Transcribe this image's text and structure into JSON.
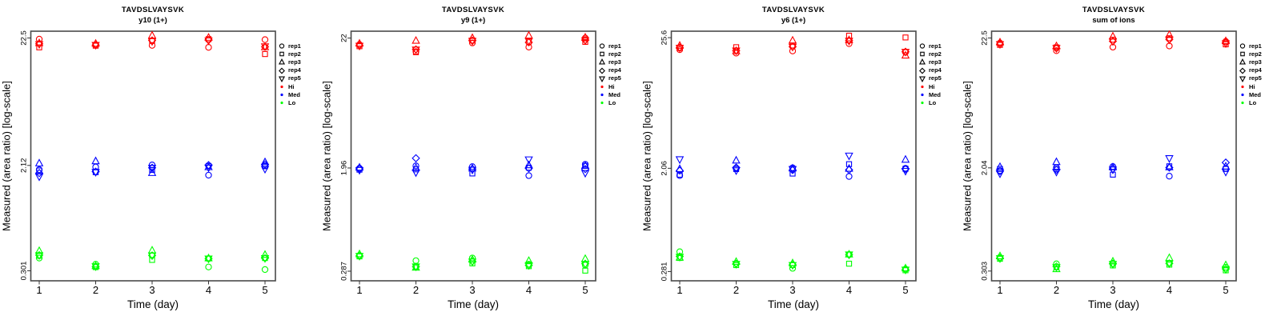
{
  "figure": {
    "xlabel": "Time (day)",
    "ylabel": "Measured (area ratio) [log-scale]",
    "x_ticks": [
      "1",
      "2",
      "3",
      "4",
      "5"
    ],
    "background": "#ffffff",
    "box_color": "#4a4a4a"
  },
  "legend": {
    "position": "right",
    "items": [
      {
        "label": "rep1",
        "symbol": "circle",
        "color": "#000000"
      },
      {
        "label": "rep2",
        "symbol": "square",
        "color": "#000000"
      },
      {
        "label": "rep3",
        "symbol": "triangle-up",
        "color": "#000000"
      },
      {
        "label": "rep4",
        "symbol": "diamond",
        "color": "#000000"
      },
      {
        "label": "rep5",
        "symbol": "triangle-down",
        "color": "#000000"
      },
      {
        "label": "Hi",
        "symbol": "dot",
        "color": "#FF0000"
      },
      {
        "label": "Med",
        "symbol": "dot",
        "color": "#0000FF"
      },
      {
        "label": "Lo",
        "symbol": "dot",
        "color": "#00FF00"
      }
    ]
  },
  "rep_symbols": [
    "circle",
    "square",
    "triangle-up",
    "diamond",
    "triangle-down"
  ],
  "chart_data": [
    {
      "type": "scatter",
      "title": "TAVDSLVAYSVK",
      "subtitle": "y10 (1+)",
      "x": [
        1,
        2,
        3,
        4,
        5
      ],
      "log_scale": true,
      "ylim": [
        0.25,
        25.5
      ],
      "yticks": [
        {
          "label": "22.5",
          "value": 22.5
        },
        {
          "label": "2.12",
          "value": 2.12
        },
        {
          "label": "0.301",
          "value": 0.301
        }
      ],
      "levels": [
        {
          "name": "Hi",
          "color": "#FF0000",
          "values": [
            [
              22.0,
              18.9,
              20.5,
              20.2,
              20.0
            ],
            [
              19.9,
              19.5,
              20.3,
              19.7,
              19.7
            ],
            [
              19.6,
              21.3,
              23.6,
              21.5,
              21.1
            ],
            [
              18.9,
              22.0,
              22.7,
              21.7,
              21.4
            ],
            [
              21.8,
              16.7,
              19.0,
              19.1,
              19.2
            ]
          ]
        },
        {
          "name": "Med",
          "color": "#0000FF",
          "values": [
            [
              1.96,
              1.93,
              2.21,
              1.84,
              1.72
            ],
            [
              2.06,
              1.87,
              2.3,
              1.89,
              1.87
            ],
            [
              2.14,
              1.95,
              1.85,
              2.03,
              2.02
            ],
            [
              1.77,
              2.1,
              2.06,
              2.13,
              2.03
            ],
            [
              2.11,
              2.09,
              2.26,
              2.16,
              1.98
            ]
          ]
        },
        {
          "name": "Lo",
          "color": "#00FF00",
          "values": [
            [
              0.381,
              0.397,
              0.436,
              0.402,
              0.4
            ],
            [
              0.34,
              0.322,
              0.33,
              0.325,
              0.326
            ],
            [
              0.4,
              0.368,
              0.44,
              0.4,
              0.398
            ],
            [
              0.323,
              0.378,
              0.381,
              0.377,
              0.376
            ],
            [
              0.308,
              0.381,
              0.406,
              0.38,
              0.379
            ]
          ]
        }
      ]
    },
    {
      "type": "scatter",
      "title": "TAVDSLVAYSVK",
      "subtitle": "y9 (1+)",
      "x": [
        1,
        2,
        3,
        4,
        5
      ],
      "log_scale": true,
      "ylim": [
        0.24,
        25.0
      ],
      "yticks": [
        {
          "label": "22",
          "value": 22
        },
        {
          "label": "1.96",
          "value": 1.96
        },
        {
          "label": "0.287",
          "value": 0.287
        }
      ],
      "levels": [
        {
          "name": "Hi",
          "color": "#FF0000",
          "values": [
            [
              19.5,
              18.9,
              19.9,
              19.2,
              19.0
            ],
            [
              17.1,
              16.9,
              21.0,
              17.8,
              17.7
            ],
            [
              20.1,
              21.0,
              22.1,
              21.0,
              20.8
            ],
            [
              18.6,
              20.6,
              23.1,
              20.3,
              20.8
            ],
            [
              22.0,
              20.5,
              22.3,
              21.2,
              21.0
            ]
          ]
        },
        {
          "name": "Med",
          "color": "#0000FF",
          "values": [
            [
              1.95,
              1.9,
              1.98,
              1.93,
              1.88
            ],
            [
              2.04,
              1.91,
              1.97,
              2.35,
              1.8
            ],
            [
              2.01,
              1.77,
              1.95,
              1.92,
              1.89
            ],
            [
              1.7,
              1.97,
              2.07,
              1.95,
              2.29
            ],
            [
              2.1,
              2.04,
              2.05,
              1.92,
              1.78
            ]
          ]
        },
        {
          "name": "Lo",
          "color": "#00FF00",
          "values": [
            [
              0.385,
              0.378,
              0.395,
              0.382,
              0.38
            ],
            [
              0.349,
              0.311,
              0.308,
              0.312,
              0.312
            ],
            [
              0.367,
              0.332,
              0.357,
              0.345,
              0.342
            ],
            [
              0.327,
              0.315,
              0.349,
              0.32,
              0.32
            ],
            [
              0.322,
              0.29,
              0.362,
              0.33,
              0.326
            ]
          ]
        }
      ]
    },
    {
      "type": "scatter",
      "title": "TAVDSLVAYSVK",
      "subtitle": "y6 (1+)",
      "x": [
        1,
        2,
        3,
        4,
        5
      ],
      "log_scale": true,
      "ylim": [
        0.235,
        29.0
      ],
      "yticks": [
        {
          "label": "25.6",
          "value": 25.6
        },
        {
          "label": "2.06",
          "value": 2.06
        },
        {
          "label": "0.281",
          "value": 0.281
        }
      ],
      "levels": [
        {
          "name": "Hi",
          "color": "#FF0000",
          "values": [
            [
              20.3,
              20.9,
              22.0,
              21.2,
              21.0
            ],
            [
              19.0,
              21.3,
              19.8,
              19.9,
              19.9
            ],
            [
              19.8,
              22.0,
              24.3,
              21.5,
              21.4
            ],
            [
              22.8,
              26.6,
              24.5,
              24.2,
              24.0
            ],
            [
              19.3,
              25.7,
              18.2,
              19.5,
              19.4
            ]
          ]
        },
        {
          "name": "Med",
          "color": "#0000FF",
          "values": [
            [
              1.79,
              1.82,
              2.04,
              1.97,
              2.44
            ],
            [
              2.06,
              2.03,
              2.4,
              2.09,
              1.97
            ],
            [
              2.08,
              1.86,
              2.06,
              1.99,
              2.02
            ],
            [
              1.76,
              2.23,
              2.05,
              2.0,
              2.62
            ],
            [
              2.06,
              2.04,
              2.44,
              2.03,
              1.95
            ]
          ]
        },
        {
          "name": "Lo",
          "color": "#00FF00",
          "values": [
            [
              0.412,
              0.365,
              0.369,
              0.376,
              0.372
            ],
            [
              0.328,
              0.318,
              0.34,
              0.326,
              0.324
            ],
            [
              0.299,
              0.318,
              0.331,
              0.32,
              0.317
            ],
            [
              0.39,
              0.327,
              0.392,
              0.388,
              0.389
            ],
            [
              0.295,
              0.288,
              0.3,
              0.292,
              0.29
            ]
          ]
        }
      ]
    },
    {
      "type": "scatter",
      "title": "TAVDSLVAYSVK",
      "subtitle": "sum of ions",
      "x": [
        1,
        2,
        3,
        4,
        5
      ],
      "log_scale": true,
      "ylim": [
        0.253,
        25.5
      ],
      "yticks": [
        {
          "label": "22.5",
          "value": 22.5
        },
        {
          "label": "2.04",
          "value": 2.04
        },
        {
          "label": "0.303",
          "value": 0.303
        }
      ],
      "levels": [
        {
          "name": "Hi",
          "color": "#FF0000",
          "values": [
            [
              20.5,
              19.8,
              20.8,
              20.1,
              20.0
            ],
            [
              17.8,
              18.9,
              19.4,
              18.6,
              18.6
            ],
            [
              19.0,
              21.8,
              23.2,
              21.2,
              21.1
            ],
            [
              19.4,
              22.4,
              23.9,
              21.9,
              21.8
            ],
            [
              21.1,
              20.0,
              21.3,
              20.6,
              20.3
            ]
          ]
        },
        {
          "name": "Med",
          "color": "#0000FF",
          "values": [
            [
              1.94,
              2.0,
              2.08,
              1.92,
              1.83
            ],
            [
              2.05,
              2.0,
              2.28,
              1.97,
              1.89
            ],
            [
              2.09,
              1.8,
              2.07,
              2.0,
              1.97
            ],
            [
              1.75,
              2.1,
              2.07,
              2.05,
              2.43
            ],
            [
              2.02,
              2.0,
              2.1,
              2.25,
              1.89
            ]
          ]
        },
        {
          "name": "Lo",
          "color": "#00FF00",
          "values": [
            [
              0.39,
              0.38,
              0.4,
              0.385,
              0.382
            ],
            [
              0.346,
              0.325,
              0.315,
              0.33,
              0.325
            ],
            [
              0.346,
              0.336,
              0.363,
              0.348,
              0.344
            ],
            [
              0.351,
              0.341,
              0.387,
              0.349,
              0.348
            ],
            [
              0.325,
              0.307,
              0.339,
              0.315,
              0.313
            ]
          ]
        }
      ]
    }
  ]
}
